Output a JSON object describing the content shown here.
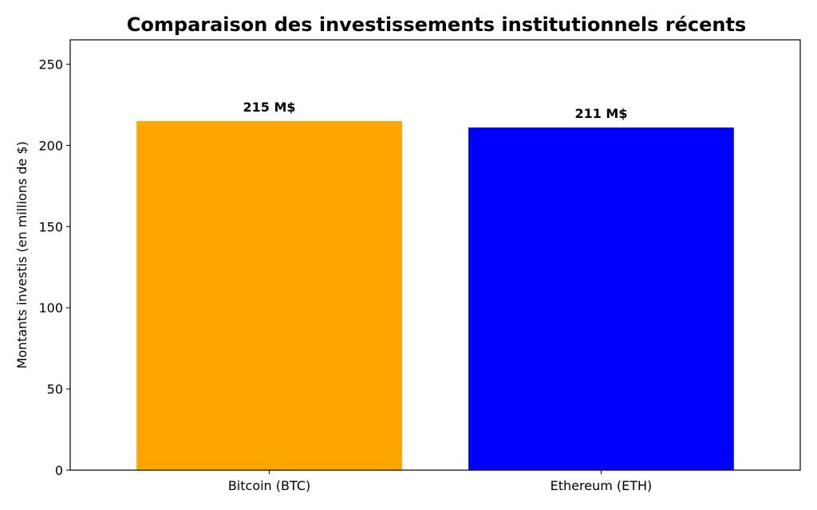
{
  "chart_data": {
    "type": "bar",
    "title": "Comparaison des investissements institutionnels récents",
    "xlabel": "",
    "ylabel": "Montants investis (en millions de $)",
    "categories": [
      "Bitcoin (BTC)",
      "Ethereum (ETH)"
    ],
    "values": [
      215,
      211
    ],
    "value_labels": [
      "215 M$",
      "211 M$"
    ],
    "colors": [
      "#FFA500",
      "#0000FF"
    ],
    "ylim": [
      0,
      265
    ],
    "yticks": [
      0,
      50,
      100,
      150,
      200,
      250
    ],
    "grid": false
  }
}
